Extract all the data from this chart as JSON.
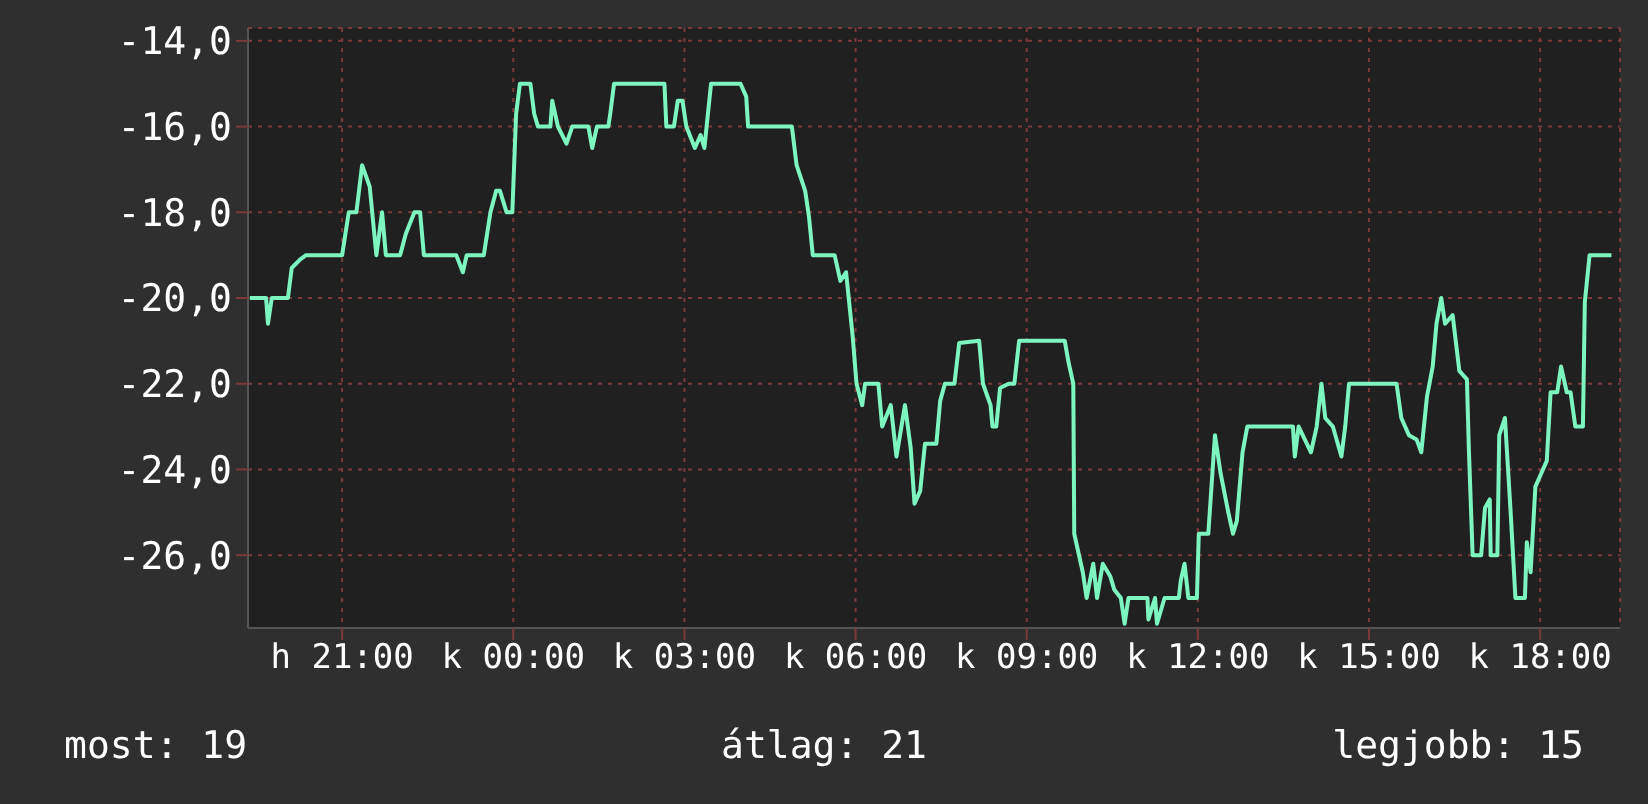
{
  "chart_data": {
    "type": "line",
    "x": [
      "--01-01T19:23",
      "--01-01T19:40",
      "--01-01T19:42",
      "--01-01T19:46",
      "--01-01T20:03",
      "--01-01T20:07",
      "--01-01T20:16",
      "--01-01T20:22",
      "--01-01T21:00",
      "--01-01T21:07",
      "--01-01T21:15",
      "--01-01T21:21",
      "--01-01T21:29",
      "--01-01T21:36",
      "--01-01T21:42",
      "--01-01T21:46",
      "--01-01T22:01",
      "--01-01T22:07",
      "--01-01T22:16",
      "--01-01T22:22",
      "--01-01T22:26",
      "--01-01T23:00",
      "--01-01T23:07",
      "--01-01T23:11",
      "--01-01T23:29",
      "--01-01T23:36",
      "--01-01T23:42",
      "--01-01T23:46",
      "--01-01T23:53",
      "--01-01T23:59",
      "--01-02T00:03",
      "--01-02T00:07",
      "--01-02T00:18",
      "--01-02T00:22",
      "--01-02T00:26",
      "--01-02T00:39",
      "--01-02T00:41",
      "--01-02T00:47",
      "--01-02T00:56",
      "--01-02T01:02",
      "--01-02T01:19",
      "--01-02T01:23",
      "--01-02T01:28",
      "--01-02T01:40",
      "--01-02T01:42",
      "--01-02T01:46",
      "--01-02T02:39",
      "--01-02T02:41",
      "--01-02T02:49",
      "--01-02T02:53",
      "--01-02T02:58",
      "--01-02T03:02",
      "--01-02T03:11",
      "--01-02T03:17",
      "--01-02T03:21",
      "--01-02T03:28",
      "--01-02T03:59",
      "--01-02T04:05",
      "--01-02T04:07",
      "--01-02T04:53",
      "--01-02T04:58",
      "--01-02T05:07",
      "--01-02T05:11",
      "--01-02T05:15",
      "--01-02T05:38",
      "--01-02T05:44",
      "--01-02T05:50",
      "--01-02T05:57",
      "--01-02T06:01",
      "--01-02T06:07",
      "--01-02T06:10",
      "--01-02T06:24",
      "--01-02T06:28",
      "--01-02T06:37",
      "--01-02T06:43",
      "--01-02T06:52",
      "--01-02T06:58",
      "--01-02T07:02",
      "--01-02T07:08",
      "--01-02T07:13",
      "--01-02T07:25",
      "--01-02T07:29",
      "--01-02T07:34",
      "--01-02T07:44",
      "--01-02T07:49",
      "--01-02T08:10",
      "--01-02T08:14",
      "--01-02T08:22",
      "--01-02T08:24",
      "--01-02T08:28",
      "--01-02T08:32",
      "--01-02T08:41",
      "--01-02T08:47",
      "--01-02T08:52",
      "--01-02T09:40",
      "--01-02T09:44",
      "--01-02T09:49",
      "--01-02T09:50",
      "--01-02T09:59",
      "--01-02T10:03",
      "--01-02T10:10",
      "--01-02T10:14",
      "--01-02T10:20",
      "--01-02T10:28",
      "--01-02T10:32",
      "--01-02T10:39",
      "--01-02T10:43",
      "--01-02T10:47",
      "--01-02T11:07",
      "--01-02T11:08",
      "--01-02T11:15",
      "--01-02T11:17",
      "--01-02T11:25",
      "--01-02T11:40",
      "--01-02T11:42",
      "--01-02T11:46",
      "--01-02T11:50",
      "--01-02T11:59",
      "--01-02T12:01",
      "--01-02T12:11",
      "--01-02T12:18",
      "--01-02T12:24",
      "--01-02T12:32",
      "--01-02T12:37",
      "--01-02T12:41",
      "--01-02T12:47",
      "--01-02T12:52",
      "--01-02T13:40",
      "--01-02T13:42",
      "--01-02T13:46",
      "--01-02T13:59",
      "--01-02T14:05",
      "--01-02T14:10",
      "--01-02T14:14",
      "--01-02T14:22",
      "--01-02T14:31",
      "--01-02T14:35",
      "--01-02T14:39",
      "--01-02T15:29",
      "--01-02T15:34",
      "--01-02T15:42",
      "--01-02T15:50",
      "--01-02T15:55",
      "--01-02T16:01",
      "--01-02T16:07",
      "--01-02T16:11",
      "--01-02T16:16",
      "--01-02T16:20",
      "--01-02T16:28",
      "--01-02T16:35",
      "--01-02T16:43",
      "--01-02T16:45",
      "--01-02T16:49",
      "--01-02T16:58",
      "--01-02T17:02",
      "--01-02T17:07",
      "--01-02T17:08",
      "--01-02T17:15",
      "--01-02T17:17",
      "--01-02T17:23",
      "--01-02T17:29",
      "--01-02T17:34",
      "--01-02T17:44",
      "--01-02T17:46",
      "--01-02T17:50",
      "--01-02T17:55",
      "--01-02T18:01",
      "--01-02T18:07",
      "--01-02T18:11",
      "--01-02T18:18",
      "--01-02T18:22",
      "--01-02T18:28",
      "--01-02T18:32",
      "--01-02T18:37",
      "--01-02T18:45",
      "--01-02T18:47",
      "--01-02T18:52",
      "--01-02T19:15"
    ],
    "series": [
      {
        "color": "#7cf5c0",
        "values": [
          -20,
          -20,
          -20.6,
          -20,
          -20,
          -19.3,
          -19.1,
          -19,
          -19,
          -18,
          -18,
          -16.9,
          -17.4,
          -19,
          -18,
          -19,
          -19,
          -18.5,
          -18,
          -18,
          -19,
          -19,
          -19.4,
          -19,
          -19,
          -18,
          -17.5,
          -17.5,
          -18,
          -18,
          -15.7,
          -15,
          -15,
          -15.7,
          -16,
          -16,
          -15.4,
          -16,
          -16.4,
          -16,
          -16,
          -16.5,
          -16,
          -16,
          -15.7,
          -15,
          -15,
          -16,
          -16,
          -15.4,
          -15.4,
          -16,
          -16.5,
          -16.2,
          -16.5,
          -15,
          -15,
          -15.3,
          -16,
          -16,
          -16.9,
          -17.5,
          -18.1,
          -19,
          -19,
          -19.6,
          -19.4,
          -20.9,
          -22,
          -22.5,
          -22,
          -22,
          -23,
          -22.5,
          -23.7,
          -22.5,
          -23.5,
          -24.8,
          -24.5,
          -23.4,
          -23.4,
          -22.4,
          -22,
          -22,
          -21.05,
          -21,
          -22,
          -22.5,
          -23,
          -23,
          -22.1,
          -22,
          -22,
          -21,
          -21,
          -21.5,
          -22,
          -25.5,
          -26.4,
          -27,
          -26.2,
          -27,
          -26.2,
          -26.5,
          -26.8,
          -27,
          -27.6,
          -27,
          -27,
          -27.5,
          -27,
          -27.6,
          -27,
          -27,
          -26.6,
          -26.2,
          -27,
          -27,
          -25.5,
          -25.5,
          -23.2,
          -24.1,
          -25,
          -25.5,
          -25.2,
          -23.6,
          -23,
          -23,
          -23.7,
          -23,
          -23.6,
          -23,
          -22,
          -22.8,
          -23,
          -23.7,
          -23,
          -22,
          -22,
          -22.8,
          -23.2,
          -23.3,
          -23.6,
          -22.3,
          -21.6,
          -20.6,
          -20,
          -20.6,
          -20.4,
          -21.7,
          -21.9,
          -23.5,
          -26,
          -26,
          -24.9,
          -24.7,
          -26,
          -26,
          -23.2,
          -22.8,
          -25,
          -27,
          -27,
          -25.7,
          -26.4,
          -24.4,
          -24.1,
          -23.8,
          -22.2,
          -22.2,
          -21.6,
          -22.2,
          -22.2,
          -23,
          -23,
          -20.1,
          -19,
          -19
        ]
      }
    ],
    "xlim": [
      "--01-01T19:21",
      "--01-02T19:24"
    ],
    "xticks": [
      {
        "value": "--01-01T21:00",
        "label": "h 21:00"
      },
      {
        "value": "--01-02T00:00",
        "label": "k 00:00"
      },
      {
        "value": "--01-02T03:00",
        "label": "k 03:00"
      },
      {
        "value": "--01-02T06:00",
        "label": "k 06:00"
      },
      {
        "value": "--01-02T09:00",
        "label": "k 09:00"
      },
      {
        "value": "--01-02T12:00",
        "label": "k 12:00"
      },
      {
        "value": "--01-02T15:00",
        "label": "k 15:00"
      },
      {
        "value": "--01-02T18:00",
        "label": "k 18:00"
      }
    ],
    "ylim": [
      -27.7,
      -13.7
    ],
    "yticks": [
      {
        "value": -26,
        "label": "-26,0"
      },
      {
        "value": -24,
        "label": "-24,0"
      },
      {
        "value": -22,
        "label": "-22,0"
      },
      {
        "value": -20,
        "label": "-20,0"
      },
      {
        "value": -18,
        "label": "-18,0"
      },
      {
        "value": -16,
        "label": "-16,0"
      },
      {
        "value": -14,
        "label": "-14,0"
      }
    ],
    "grid": true,
    "marker": "none",
    "line_style": "solid",
    "annotations": [
      "most: 19",
      "átlag: 21",
      "legjobb: 15"
    ]
  }
}
